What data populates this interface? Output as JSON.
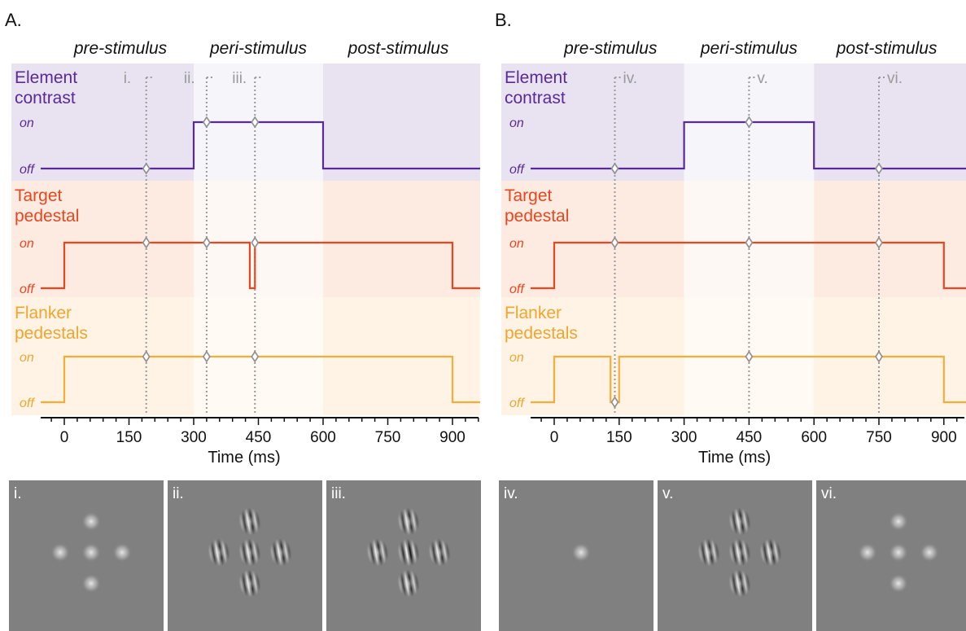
{
  "colors": {
    "contrast": "#5a2a98",
    "target": "#e8461e",
    "flanker": "#f5ad3a",
    "marker": "#9a9a9a",
    "stim_background": "#808080"
  },
  "shared_labels": {
    "phases": [
      "pre-stimulus",
      "peri-stimulus",
      "post-stimulus"
    ],
    "traces": [
      {
        "key": "contrast",
        "lines": [
          "Element",
          "contrast"
        ]
      },
      {
        "key": "target",
        "lines": [
          "Target",
          "pedestal"
        ]
      },
      {
        "key": "flanker",
        "lines": [
          "Flanker",
          "pedestals"
        ]
      }
    ],
    "on": "on",
    "off": "off",
    "xlabel": "Time (ms)"
  },
  "panels": [
    {
      "letter": "A.",
      "xticks": [
        0,
        150,
        300,
        450,
        600,
        750,
        900
      ],
      "xlim": [
        -55,
        965
      ],
      "traces": {
        "contrast": [
          [
            -55,
            0
          ],
          [
            300,
            0
          ],
          [
            300,
            1
          ],
          [
            600,
            1
          ],
          [
            600,
            0
          ],
          [
            965,
            0
          ]
        ],
        "target": [
          [
            -55,
            0
          ],
          [
            0,
            0
          ],
          [
            0,
            1
          ],
          [
            430,
            1
          ],
          [
            430,
            0
          ],
          [
            442,
            0
          ],
          [
            442,
            1
          ],
          [
            900,
            1
          ],
          [
            900,
            0
          ],
          [
            965,
            0
          ]
        ],
        "flanker": [
          [
            -55,
            0
          ],
          [
            0,
            0
          ],
          [
            0,
            1
          ],
          [
            900,
            1
          ],
          [
            900,
            0
          ],
          [
            965,
            0
          ]
        ]
      },
      "markers": [
        {
          "label": "i.",
          "t": 190
        },
        {
          "label": "ii.",
          "t": 330
        },
        {
          "label": "iii.",
          "t": 442
        }
      ],
      "stimuli": [
        {
          "label": "i.",
          "pedestals": "all",
          "gratings": "none"
        },
        {
          "label": "ii.",
          "pedestals": "all",
          "gratings": "all"
        },
        {
          "label": "iii.",
          "pedestals": "flankers",
          "gratings": "all"
        }
      ]
    },
    {
      "letter": "B.",
      "xticks": [
        0,
        150,
        300,
        450,
        600,
        750,
        900
      ],
      "xlim": [
        -55,
        965
      ],
      "traces": {
        "contrast": [
          [
            -55,
            0
          ],
          [
            300,
            0
          ],
          [
            300,
            1
          ],
          [
            600,
            1
          ],
          [
            600,
            0
          ],
          [
            965,
            0
          ]
        ],
        "target": [
          [
            -55,
            0
          ],
          [
            0,
            0
          ],
          [
            0,
            1
          ],
          [
            900,
            1
          ],
          [
            900,
            0
          ],
          [
            965,
            0
          ]
        ],
        "flanker": [
          [
            -55,
            0
          ],
          [
            0,
            0
          ],
          [
            0,
            1
          ],
          [
            130,
            1
          ],
          [
            130,
            0
          ],
          [
            150,
            0
          ],
          [
            150,
            1
          ],
          [
            900,
            1
          ],
          [
            900,
            0
          ],
          [
            965,
            0
          ]
        ]
      },
      "markers": [
        {
          "label": "iv.",
          "t": 140
        },
        {
          "label": "v.",
          "t": 450
        },
        {
          "label": "vi.",
          "t": 750
        }
      ],
      "stimuli": [
        {
          "label": "iv.",
          "pedestals": "target",
          "gratings": "none"
        },
        {
          "label": "v.",
          "pedestals": "all",
          "gratings": "all"
        },
        {
          "label": "vi.",
          "pedestals": "all",
          "gratings": "none"
        }
      ]
    }
  ]
}
